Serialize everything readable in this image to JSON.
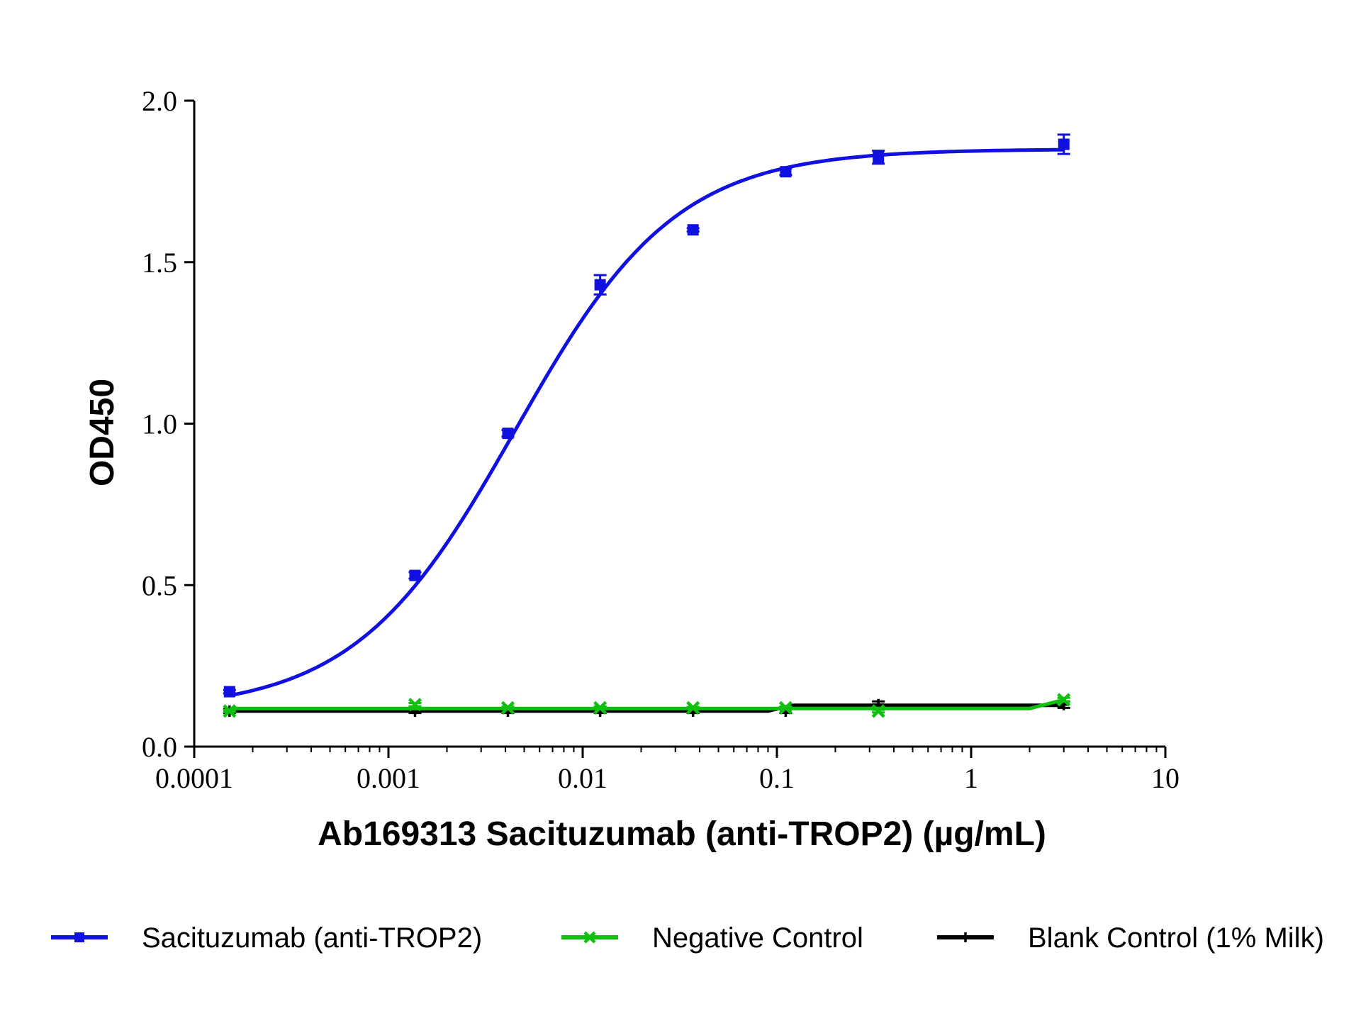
{
  "chart_data": {
    "type": "scatter",
    "xscale": "log",
    "xlim": [
      0.0001,
      10
    ],
    "ylim": [
      0,
      2
    ],
    "xlabel": "Ab169313 Sacituzumab (anti-TROP2) (µg/mL)",
    "ylabel": "OD450",
    "xticks": [
      {
        "value": 0.0001,
        "label": "0.0001"
      },
      {
        "value": 0.001,
        "label": "0.001"
      },
      {
        "value": 0.01,
        "label": "0.01"
      },
      {
        "value": 0.1,
        "label": "0.1"
      },
      {
        "value": 1,
        "label": "1"
      },
      {
        "value": 10,
        "label": "10"
      }
    ],
    "yticks": [
      {
        "value": 0,
        "label": "0.0"
      },
      {
        "value": 0.5,
        "label": "0.5"
      },
      {
        "value": 1,
        "label": "1.0"
      },
      {
        "value": 1.5,
        "label": "1.5"
      },
      {
        "value": 2,
        "label": "2.0"
      }
    ],
    "grid": false,
    "legend_position": "bottom",
    "x": [
      0.000152,
      0.00137,
      0.00412,
      0.0123,
      0.037,
      0.111,
      0.333,
      3.0
    ],
    "series": [
      {
        "name": "Sacituzumab (anti-TROP2)",
        "color": "#1010e0",
        "marker": "square",
        "y": [
          0.17,
          0.53,
          0.97,
          1.43,
          1.6,
          1.78,
          1.825,
          1.865
        ],
        "err": [
          0.005,
          0.01,
          0.01,
          0.03,
          0.005,
          0.01,
          0.02,
          0.03
        ],
        "fit": {
          "bottom": 0.11,
          "top": 1.85,
          "ec50": 0.0045,
          "hill": 1.05
        }
      },
      {
        "name": "Negative Control",
        "color": "#10c010",
        "marker": "x",
        "y": [
          0.11,
          0.13,
          0.12,
          0.12,
          0.12,
          0.12,
          0.11,
          0.145
        ],
        "err": [
          0.003,
          0.005,
          0.004,
          0.004,
          0.003,
          0.004,
          0.004,
          0.006
        ]
      },
      {
        "name": "Blank Control (1% Milk)",
        "color": "#000000",
        "marker": "plus",
        "y": [
          0.11,
          0.11,
          0.11,
          0.11,
          0.11,
          0.11,
          0.13,
          0.13
        ],
        "err": [
          0.006,
          0.006,
          0.006,
          0.006,
          0.006,
          0.006,
          0.01,
          0.01
        ]
      }
    ]
  }
}
